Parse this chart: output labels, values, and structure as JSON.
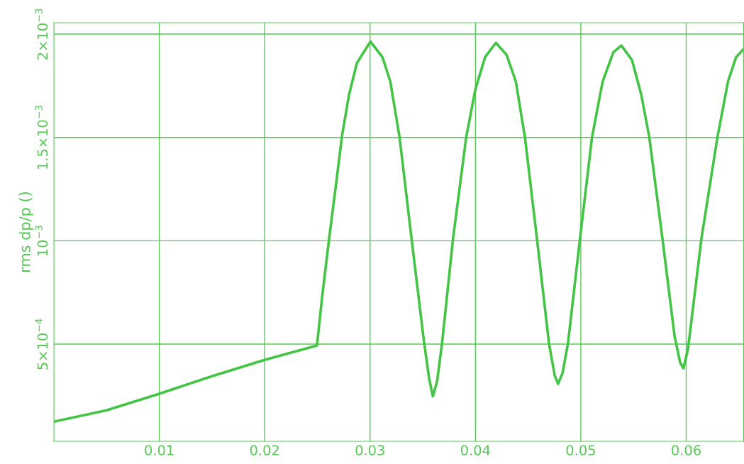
{
  "chart_data": {
    "type": "line",
    "ylabel": "rms dp/p ()",
    "xlim": [
      0,
      0.06545
    ],
    "ylim": [
      3e-05,
      0.002055
    ],
    "xticks": [
      0.01,
      0.02,
      0.03,
      0.04,
      0.05,
      0.06
    ],
    "yticks": [
      {
        "value": 0.0005,
        "label": "5×10$^{−4}$"
      },
      {
        "value": 0.001,
        "label": "10$^{−3}$"
      },
      {
        "value": 0.0015,
        "label": "1.5×10$^{−3}$"
      },
      {
        "value": 0.002,
        "label": "2×10$^{−3}$"
      }
    ],
    "grid": true,
    "marker": "none",
    "line_style": "solid",
    "series": [
      {
        "color": "#44c444",
        "x": [
          0,
          0.005,
          0.01,
          0.015,
          0.02,
          0.02496,
          0.02547,
          0.02611,
          0.02675,
          0.02735,
          0.028,
          0.02876,
          0.03004,
          0.03118,
          0.03192,
          0.0328,
          0.03394,
          0.03508,
          0.0356,
          0.03596,
          0.03636,
          0.03683,
          0.03787,
          0.03912,
          0.03999,
          0.04091,
          0.04194,
          0.04295,
          0.04383,
          0.0447,
          0.04584,
          0.04698,
          0.04752,
          0.04784,
          0.04826,
          0.04878,
          0.04992,
          0.05106,
          0.05207,
          0.05309,
          0.05385,
          0.05486,
          0.05574,
          0.0565,
          0.05775,
          0.05889,
          0.05942,
          0.05974,
          0.06017,
          0.06144,
          0.06296,
          0.06397,
          0.06473,
          0.06541
        ],
        "values": [
          0.000125,
          0.00018,
          0.00026,
          0.000345,
          0.000424,
          0.000493,
          0.000737,
          0.001009,
          0.001266,
          0.001512,
          0.001706,
          0.001861,
          0.001964,
          0.001888,
          0.001771,
          0.0015,
          0.001009,
          0.000527,
          0.000335,
          0.000247,
          0.000321,
          0.000503,
          0.001009,
          0.0015,
          0.001732,
          0.001888,
          0.001958,
          0.0019,
          0.001771,
          0.0015,
          0.001009,
          0.000503,
          0.000349,
          0.000308,
          0.000359,
          0.000503,
          0.001009,
          0.0015,
          0.001771,
          0.001912,
          0.001945,
          0.001874,
          0.001706,
          0.0015,
          0.001009,
          0.000541,
          0.000412,
          0.000383,
          0.000476,
          0.001009,
          0.0015,
          0.001771,
          0.001888,
          0.001926
        ]
      }
    ]
  }
}
